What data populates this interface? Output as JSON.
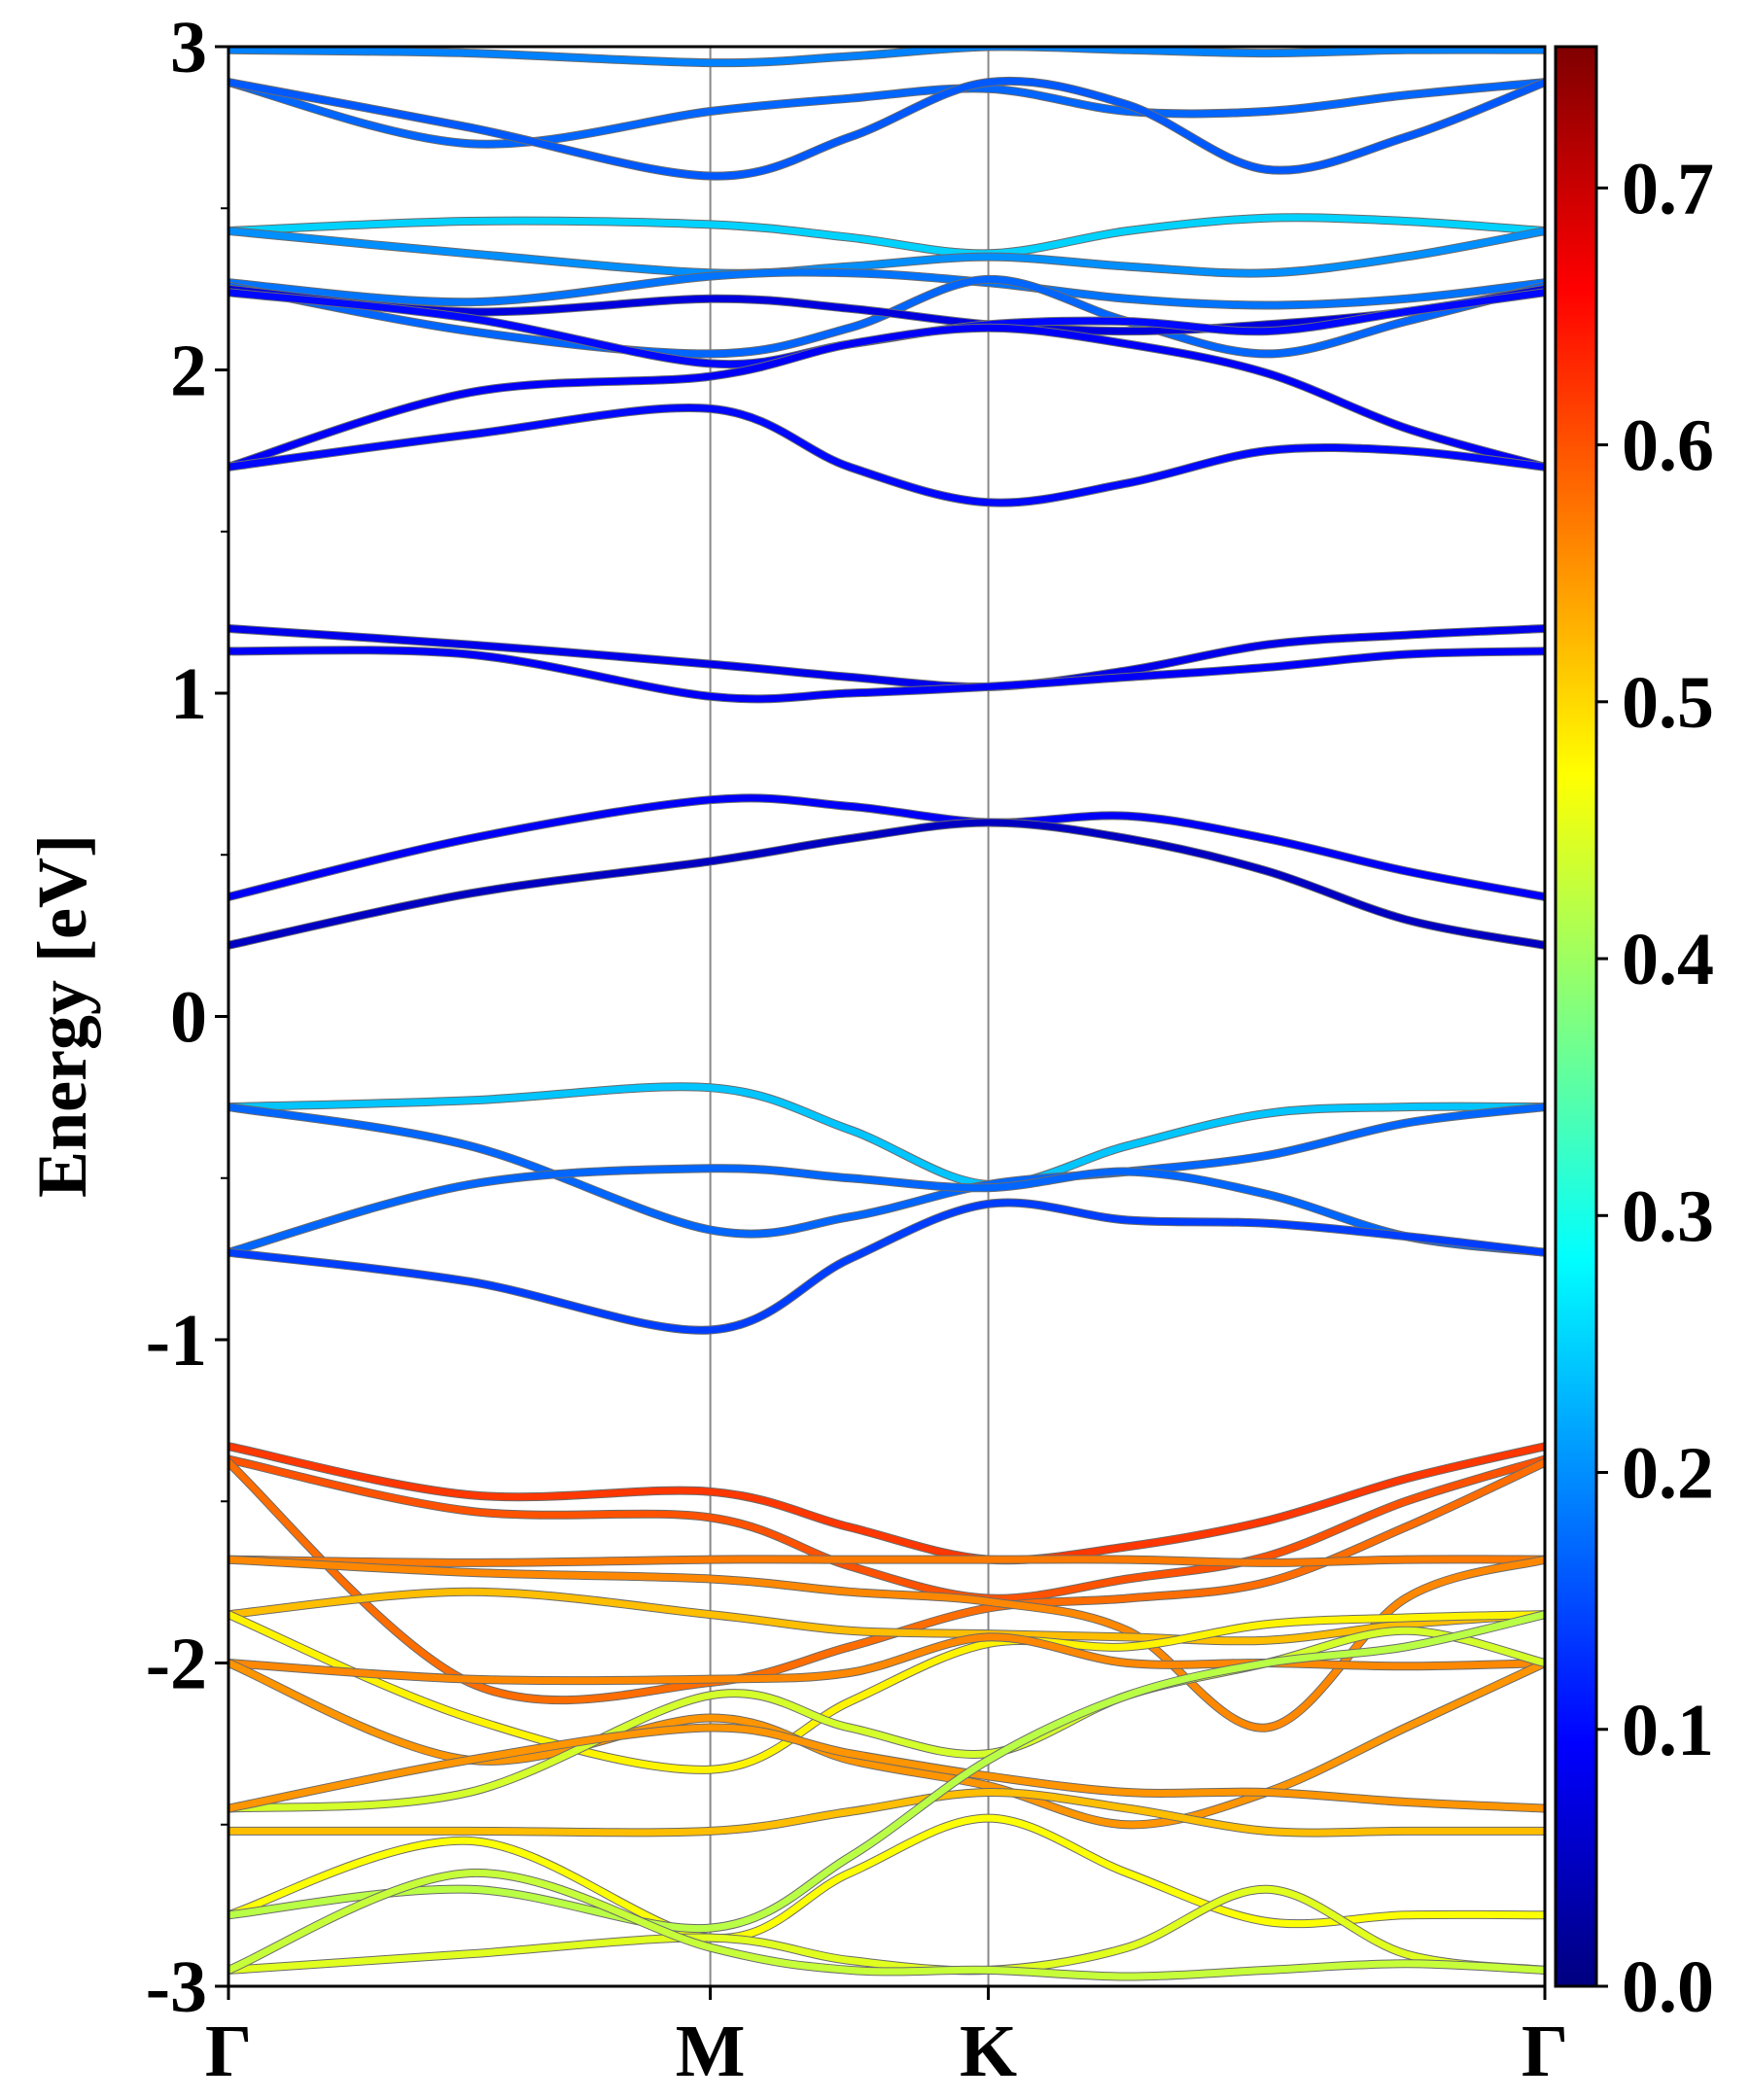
{
  "chart_data": {
    "type": "line",
    "title": "",
    "xlabel": "",
    "ylabel": "Energy [eV]",
    "ylim": [
      -3,
      3
    ],
    "yticks": [
      "-3",
      "-2",
      "-1",
      "0",
      "1",
      "2",
      "3"
    ],
    "kpath": {
      "labels": [
        "Γ",
        "M",
        "K",
        "Γ"
      ],
      "positions": [
        0,
        1,
        1.577,
        2.732
      ]
    },
    "colorbar": {
      "colormap": "jet",
      "range": [
        0.0,
        0.755
      ],
      "ticks": [
        "0.0",
        "0.1",
        "0.2",
        "0.3",
        "0.4",
        "0.5",
        "0.6",
        "0.7"
      ]
    },
    "x": [
      0,
      0.5,
      1,
      1.289,
      1.577,
      1.866,
      2.155,
      2.443,
      2.732
    ],
    "series": [
      {
        "values": [
          2.99,
          2.98,
          2.95,
          2.97,
          3.0,
          2.99,
          2.98,
          2.99,
          2.99
        ],
        "weight": 0.19
      },
      {
        "values": [
          2.89,
          2.7,
          2.8,
          2.84,
          2.87,
          2.8,
          2.8,
          2.85,
          2.89
        ],
        "weight": 0.17
      },
      {
        "values": [
          2.89,
          2.75,
          2.6,
          2.72,
          2.89,
          2.82,
          2.62,
          2.72,
          2.89
        ],
        "weight": 0.16
      },
      {
        "values": [
          2.43,
          2.46,
          2.45,
          2.41,
          2.36,
          2.43,
          2.47,
          2.46,
          2.43
        ],
        "weight": 0.25
      },
      {
        "values": [
          2.43,
          2.36,
          2.3,
          2.32,
          2.35,
          2.32,
          2.3,
          2.35,
          2.43
        ],
        "weight": 0.2
      },
      {
        "values": [
          2.27,
          2.21,
          2.29,
          2.3,
          2.27,
          2.22,
          2.2,
          2.22,
          2.27
        ],
        "weight": 0.18
      },
      {
        "values": [
          2.26,
          2.12,
          2.05,
          2.13,
          2.28,
          2.15,
          2.05,
          2.15,
          2.26
        ],
        "weight": 0.17
      },
      {
        "values": [
          2.25,
          2.18,
          2.22,
          2.19,
          2.14,
          2.12,
          2.14,
          2.18,
          2.25
        ],
        "weight": 0.07
      },
      {
        "values": [
          2.24,
          2.16,
          2.02,
          2.08,
          2.14,
          2.15,
          2.12,
          2.18,
          2.24
        ],
        "weight": 0.1
      },
      {
        "values": [
          1.7,
          1.93,
          1.98,
          2.08,
          2.13,
          2.08,
          1.99,
          1.82,
          1.7
        ],
        "weight": 0.09
      },
      {
        "values": [
          1.7,
          1.8,
          1.88,
          1.7,
          1.59,
          1.65,
          1.75,
          1.75,
          1.7
        ],
        "weight": 0.1
      },
      {
        "values": [
          1.2,
          1.15,
          1.09,
          1.05,
          1.02,
          1.07,
          1.15,
          1.18,
          1.2
        ],
        "weight": 0.08
      },
      {
        "values": [
          1.13,
          1.12,
          0.99,
          1.0,
          1.02,
          1.05,
          1.08,
          1.12,
          1.13
        ],
        "weight": 0.09
      },
      {
        "values": [
          0.37,
          0.55,
          0.67,
          0.65,
          0.6,
          0.62,
          0.55,
          0.45,
          0.37
        ],
        "weight": 0.09
      },
      {
        "values": [
          0.22,
          0.38,
          0.48,
          0.55,
          0.6,
          0.55,
          0.45,
          0.3,
          0.22
        ],
        "weight": 0.05
      },
      {
        "values": [
          -0.28,
          -0.26,
          -0.22,
          -0.35,
          -0.52,
          -0.4,
          -0.3,
          -0.28,
          -0.28
        ],
        "weight": 0.24
      },
      {
        "values": [
          -0.28,
          -0.4,
          -0.66,
          -0.62,
          -0.52,
          -0.48,
          -0.43,
          -0.33,
          -0.28
        ],
        "weight": 0.17
      },
      {
        "values": [
          -0.73,
          -0.52,
          -0.47,
          -0.5,
          -0.53,
          -0.48,
          -0.55,
          -0.68,
          -0.73
        ],
        "weight": 0.17
      },
      {
        "values": [
          -0.73,
          -0.82,
          -0.97,
          -0.75,
          -0.58,
          -0.63,
          -0.64,
          -0.68,
          -0.73
        ],
        "weight": 0.14
      },
      {
        "values": [
          -1.33,
          -1.48,
          -1.47,
          -1.58,
          -1.68,
          -1.64,
          -1.56,
          -1.43,
          -1.33
        ],
        "weight": 0.62
      },
      {
        "values": [
          -1.37,
          -1.53,
          -1.55,
          -1.7,
          -1.8,
          -1.74,
          -1.67,
          -1.5,
          -1.37
        ],
        "weight": 0.6
      },
      {
        "values": [
          -1.38,
          -2.06,
          -2.06,
          -1.95,
          -1.83,
          -1.8,
          -1.75,
          -1.58,
          -1.38
        ],
        "weight": 0.58
      },
      {
        "values": [
          -1.68,
          -1.69,
          -1.68,
          -1.68,
          -1.68,
          -1.68,
          -1.69,
          -1.68,
          -1.68
        ],
        "weight": 0.57
      },
      {
        "values": [
          -1.68,
          -1.72,
          -1.74,
          -1.78,
          -1.81,
          -1.9,
          -2.2,
          -1.8,
          -1.68
        ],
        "weight": 0.56
      },
      {
        "values": [
          -1.85,
          -1.78,
          -1.85,
          -1.9,
          -1.91,
          -1.92,
          -1.93,
          -1.88,
          -1.85
        ],
        "weight": 0.52
      },
      {
        "values": [
          -1.85,
          -2.17,
          -2.33,
          -2.12,
          -1.94,
          -1.95,
          -1.88,
          -1.86,
          -1.85
        ],
        "weight": 0.48
      },
      {
        "values": [
          -2.0,
          -2.05,
          -2.05,
          -2.03,
          -1.92,
          -2.0,
          -2.0,
          -2.01,
          -2.0
        ],
        "weight": 0.56
      },
      {
        "values": [
          -2.0,
          -2.3,
          -2.17,
          -2.3,
          -2.38,
          -2.5,
          -2.4,
          -2.2,
          -2.0
        ],
        "weight": 0.55
      },
      {
        "values": [
          -2.45,
          -2.4,
          -2.1,
          -2.2,
          -2.28,
          -2.1,
          -2.0,
          -1.9,
          -2.0
        ],
        "weight": 0.44
      },
      {
        "values": [
          -2.45,
          -2.3,
          -2.2,
          -2.28,
          -2.35,
          -2.4,
          -2.4,
          -2.43,
          -2.45
        ],
        "weight": 0.55
      },
      {
        "values": [
          -2.52,
          -2.52,
          -2.52,
          -2.46,
          -2.4,
          -2.45,
          -2.52,
          -2.52,
          -2.52
        ],
        "weight": 0.52
      },
      {
        "values": [
          -2.78,
          -2.55,
          -2.85,
          -2.65,
          -2.48,
          -2.65,
          -2.8,
          -2.78,
          -2.78
        ],
        "weight": 0.47
      },
      {
        "values": [
          -2.78,
          -2.7,
          -2.82,
          -2.6,
          -2.3,
          -2.1,
          -2.0,
          -1.95,
          -1.85
        ],
        "weight": 0.42
      },
      {
        "values": [
          -2.95,
          -2.9,
          -2.85,
          -2.92,
          -2.95,
          -2.88,
          -2.7,
          -2.9,
          -2.95
        ],
        "weight": 0.45
      },
      {
        "values": [
          -2.95,
          -2.65,
          -2.88,
          -2.95,
          -2.95,
          -2.97,
          -2.95,
          -2.93,
          -2.95
        ],
        "weight": 0.43
      }
    ]
  }
}
